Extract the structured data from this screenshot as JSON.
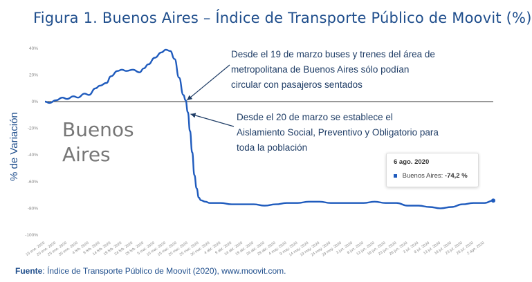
{
  "title": "Figura 1. Buenos Aires – Índice de Transporte Público de Moovit (%)",
  "source_label": "Fuente",
  "source_text": ": Índice de Transporte Público de Moovit (2020), www.moovit.com.",
  "watermark": [
    "Buenos",
    "Aires"
  ],
  "annotations": [
    [
      "Desde el 19 de marzo buses y trenes del área de",
      "metropolitana de Buenos Aires sólo podían",
      "circular con pasajeros sentados"
    ],
    [
      "Desde el 20 de marzo se establece el",
      "Aislamiento Social, Preventivo y Obligatorio para",
      "toda la población"
    ]
  ],
  "tooltip": {
    "date": "6 ago. 2020",
    "series": "Buenos Aires:",
    "value": "-74,2 %"
  },
  "colors": {
    "line": "#1f5bbd",
    "text": "#1f4e8c",
    "axis": "#888888",
    "zero": "#333333"
  },
  "chart_data": {
    "type": "line",
    "title": "Figura 1. Buenos Aires – Índice de Transporte Público de Moovit (%)",
    "ylabel": "% de Variación",
    "xlabel": "",
    "ylim": [
      -100,
      40
    ],
    "yticks": [
      "40%",
      "20%",
      "0%",
      "-20%",
      "-40%",
      "-60%",
      "-80%",
      "-100%"
    ],
    "ytick_values": [
      40,
      20,
      0,
      -20,
      -40,
      -60,
      -80,
      -100
    ],
    "xticks": [
      "15 ene. 2020",
      "20 ene. 2020",
      "25 ene. 2020",
      "30 ene. 2020",
      "4 feb. 2020",
      "9 feb. 2020",
      "14 feb. 2020",
      "19 feb. 2020",
      "24 feb. 2020",
      "29 feb. 2020",
      "5 mar. 2020",
      "10 mar. 2020",
      "15 mar. 2020",
      "20 mar. 2020",
      "25 mar. 2020",
      "30 mar. 2020",
      "4 abr. 2020",
      "9 abr. 2020",
      "14 abr. 2020",
      "19 abr. 2020",
      "24 abr. 2020",
      "29 abr. 2020",
      "4 may. 2020",
      "9 may. 2020",
      "14 may. 2020",
      "19 may. 2020",
      "24 may. 2020",
      "29 may. 2020",
      "3 jun. 2020",
      "8 jun. 2020",
      "13 jun. 2020",
      "18 jun. 2020",
      "23 jun. 2020",
      "28 jun. 2020",
      "3 jul. 2020",
      "8 jul. 2020",
      "13 jul. 2020",
      "18 jul. 2020",
      "23 jul. 2020",
      "28 jul. 2020",
      "2 ago. 2020"
    ],
    "grid": false,
    "legend": "none",
    "series": [
      {
        "name": "Buenos Aires",
        "x": [
          "15 ene. 2020",
          "17 ene. 2020",
          "20 ene. 2020",
          "23 ene. 2020",
          "25 ene. 2020",
          "28 ene. 2020",
          "30 ene. 2020",
          "2 feb. 2020",
          "4 feb. 2020",
          "7 feb. 2020",
          "9 feb. 2020",
          "12 feb. 2020",
          "14 feb. 2020",
          "17 feb. 2020",
          "19 feb. 2020",
          "21 feb. 2020",
          "24 feb. 2020",
          "27 feb. 2020",
          "29 feb. 2020",
          "2 mar. 2020",
          "5 mar. 2020",
          "8 mar. 2020",
          "10 mar. 2020",
          "12 mar. 2020",
          "14 mar. 2020",
          "16 mar. 2020",
          "18 mar. 2020",
          "19 mar. 2020",
          "20 mar. 2020",
          "21 mar. 2020",
          "22 mar. 2020",
          "23 mar. 2020",
          "24 mar. 2020",
          "25 mar. 2020",
          "26 mar. 2020",
          "28 mar. 2020",
          "30 mar. 2020",
          "4 abr. 2020",
          "9 abr. 2020",
          "14 abr. 2020",
          "19 abr. 2020",
          "24 abr. 2020",
          "29 abr. 2020",
          "4 may. 2020",
          "9 may. 2020",
          "14 may. 2020",
          "19 may. 2020",
          "24 may. 2020",
          "29 may. 2020",
          "3 jun. 2020",
          "8 jun. 2020",
          "13 jun. 2020",
          "18 jun. 2020",
          "23 jun. 2020",
          "28 jun. 2020",
          "3 jul. 2020",
          "8 jul. 2020",
          "13 jul. 2020",
          "18 jul. 2020",
          "23 jul. 2020",
          "28 jul. 2020",
          "2 ago. 2020",
          "6 ago. 2020"
        ],
        "values": [
          0,
          -1,
          1,
          3,
          2,
          4,
          3,
          6,
          5,
          10,
          12,
          14,
          19,
          23,
          24,
          23,
          24,
          22,
          25,
          28,
          33,
          37,
          39,
          38,
          32,
          18,
          5,
          1,
          -8,
          -22,
          -38,
          -55,
          -65,
          -72,
          -74,
          -75,
          -76,
          -76,
          -77,
          -77,
          -77,
          -78,
          -77,
          -76,
          -76,
          -75,
          -75,
          -76,
          -76,
          -76,
          -76,
          -75,
          -76,
          -76,
          -78,
          -78,
          -79,
          -80,
          -79,
          -77,
          -76,
          -76,
          -74.2
        ]
      }
    ]
  }
}
